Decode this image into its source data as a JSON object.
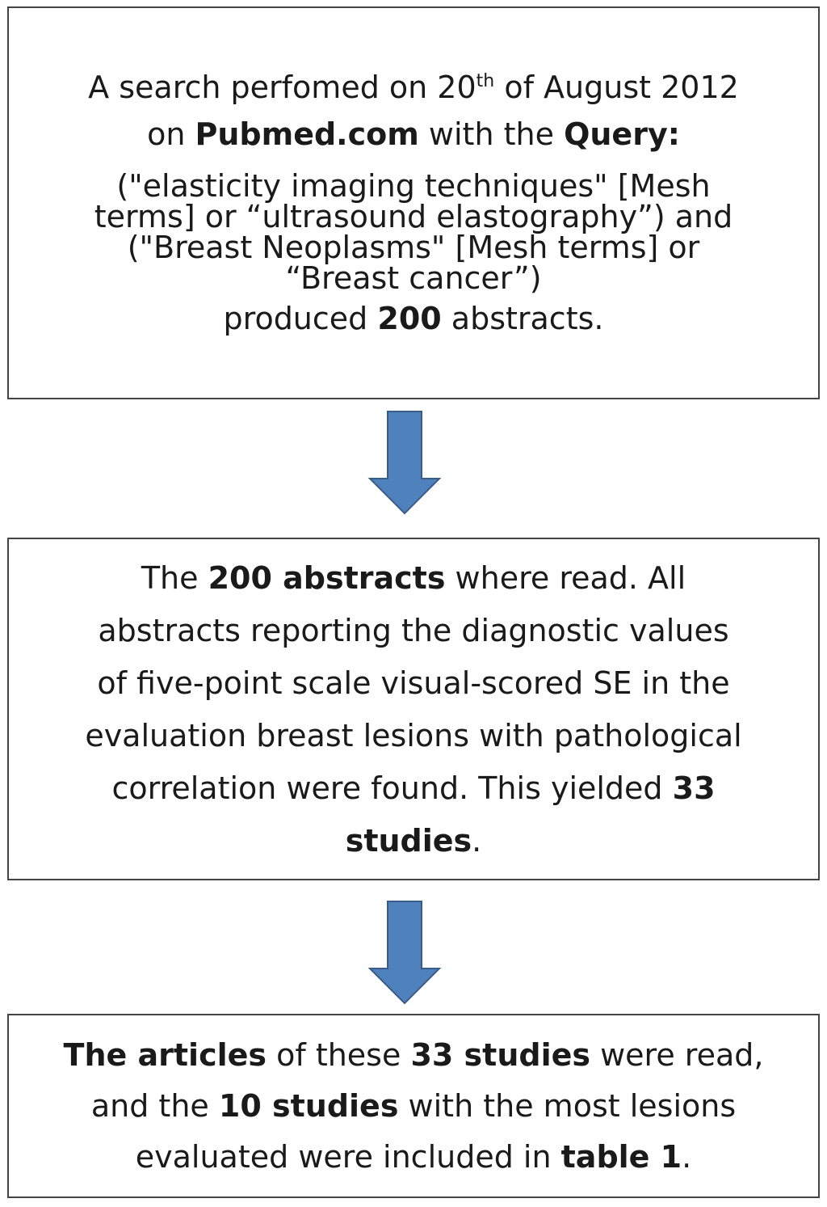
{
  "box1": {
    "l1_pre": "A search perfomed on 20",
    "l1_sup": "th",
    "l1_post": " of August 2012",
    "l2_pre": "on ",
    "l2_bold1": "Pubmed.com",
    "l2_mid": " with the ",
    "l2_bold2": "Query:",
    "l3": "(\"elasticity imaging techniques\" [Mesh",
    "l4": "terms] or “ultrasound elastography”) and",
    "l5": "(\"Breast Neoplasms\" [Mesh terms] or",
    "l6": "“Breast cancer”)",
    "l7_pre": "produced ",
    "l7_bold": "200",
    "l7_post": " abstracts."
  },
  "box2": {
    "l1_pre": "The ",
    "l1_bold": "200 abstracts",
    "l1_post": " where read. All",
    "l2": "abstracts reporting the diagnostic values",
    "l3": "of five-point scale visual-scored SE in the",
    "l4": "evaluation breast lesions with pathological",
    "l5_pre": "correlation were found. This yielded ",
    "l5_bold": "33",
    "l6_bold": "studies",
    "l6_post": "."
  },
  "box3": {
    "l1_bold1": "The articles",
    "l1_mid": " of these ",
    "l1_bold2": "33 studies",
    "l1_post": " were read,",
    "l2_pre": "and the ",
    "l2_bold": "10 studies",
    "l2_post": " with the most lesions",
    "l3_pre": "evaluated were included in ",
    "l3_bold": "table 1",
    "l3_post": "."
  },
  "colors": {
    "arrow_fill": "#4f81bd",
    "arrow_stroke": "#385d8a",
    "box_border": "#444444"
  }
}
